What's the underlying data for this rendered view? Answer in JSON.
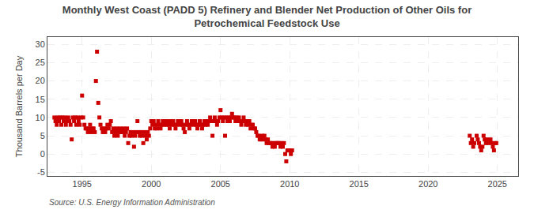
{
  "chart_data": {
    "type": "scatter",
    "title": "Monthly West Coast (PADD 5) Refinery and Blender Net Production of Other Oils for\nPetrochemical Feedstock Use",
    "ylabel": "Thousand Barrels per Day",
    "annotations": [
      "Source: U.S. Energy Information Administration"
    ],
    "color": "#cc0000",
    "marker": "square",
    "grid": true,
    "xlim": [
      1992.5,
      2026.5
    ],
    "ylim": [
      -6,
      32
    ],
    "xticks": [
      1995,
      2000,
      2005,
      2010,
      2015,
      2020,
      2025
    ],
    "yticks": [
      -5,
      0,
      5,
      10,
      15,
      20,
      25,
      30
    ],
    "x": [
      1993.0,
      1993.08,
      1993.17,
      1993.25,
      1993.33,
      1993.42,
      1993.5,
      1993.58,
      1993.67,
      1993.75,
      1993.83,
      1993.92,
      1994.0,
      1994.08,
      1994.17,
      1994.25,
      1994.33,
      1994.42,
      1994.5,
      1994.58,
      1994.67,
      1994.75,
      1994.83,
      1994.92,
      1995.0,
      1995.08,
      1995.17,
      1995.25,
      1995.33,
      1995.42,
      1995.5,
      1995.58,
      1995.67,
      1995.75,
      1995.83,
      1995.92,
      1996.0,
      1996.08,
      1996.17,
      1996.25,
      1996.33,
      1996.42,
      1996.5,
      1996.58,
      1996.67,
      1996.75,
      1996.83,
      1996.92,
      1997.0,
      1997.08,
      1997.17,
      1997.25,
      1997.33,
      1997.42,
      1997.5,
      1997.58,
      1997.67,
      1997.75,
      1997.83,
      1997.92,
      1998.0,
      1998.08,
      1998.17,
      1998.25,
      1998.33,
      1998.42,
      1998.5,
      1998.58,
      1998.67,
      1998.75,
      1998.83,
      1998.92,
      1999.0,
      1999.08,
      1999.17,
      1999.25,
      1999.33,
      1999.42,
      1999.5,
      1999.58,
      1999.67,
      1999.75,
      1999.83,
      1999.92,
      2000.0,
      2000.08,
      2000.17,
      2000.25,
      2000.33,
      2000.42,
      2000.5,
      2000.58,
      2000.67,
      2000.75,
      2000.83,
      2000.92,
      2001.0,
      2001.08,
      2001.17,
      2001.25,
      2001.33,
      2001.42,
      2001.5,
      2001.58,
      2001.67,
      2001.75,
      2001.83,
      2001.92,
      2002.0,
      2002.08,
      2002.17,
      2002.25,
      2002.33,
      2002.42,
      2002.5,
      2002.58,
      2002.67,
      2002.75,
      2002.83,
      2002.92,
      2003.0,
      2003.08,
      2003.17,
      2003.25,
      2003.33,
      2003.42,
      2003.5,
      2003.58,
      2003.67,
      2003.75,
      2003.83,
      2003.92,
      2004.0,
      2004.08,
      2004.17,
      2004.25,
      2004.33,
      2004.42,
      2004.5,
      2004.58,
      2004.67,
      2004.75,
      2004.83,
      2004.92,
      2005.0,
      2005.08,
      2005.17,
      2005.25,
      2005.33,
      2005.42,
      2005.5,
      2005.58,
      2005.67,
      2005.75,
      2005.83,
      2005.92,
      2006.0,
      2006.08,
      2006.17,
      2006.25,
      2006.33,
      2006.42,
      2006.5,
      2006.58,
      2006.67,
      2006.75,
      2006.83,
      2006.92,
      2007.0,
      2007.08,
      2007.17,
      2007.25,
      2007.33,
      2007.42,
      2007.5,
      2007.58,
      2007.67,
      2007.75,
      2007.83,
      2007.92,
      2008.0,
      2008.08,
      2008.17,
      2008.25,
      2008.33,
      2008.42,
      2008.5,
      2008.58,
      2008.67,
      2008.75,
      2008.83,
      2008.92,
      2009.0,
      2009.08,
      2009.17,
      2009.25,
      2009.33,
      2009.42,
      2009.5,
      2009.58,
      2009.67,
      2009.75,
      2009.83,
      2009.92,
      2010.0,
      2010.08,
      2010.17,
      2023.0,
      2023.08,
      2023.17,
      2023.25,
      2023.33,
      2023.5,
      2023.58,
      2023.67,
      2023.75,
      2023.83,
      2023.92,
      2024.0,
      2024.08,
      2024.17,
      2024.25,
      2024.33,
      2024.5,
      2024.58,
      2024.67,
      2024.75,
      2024.83,
      2024.92
    ],
    "values": [
      10,
      9,
      8,
      10,
      9,
      10,
      8,
      10,
      9,
      10,
      8,
      9,
      10,
      9,
      8,
      4,
      10,
      9,
      10,
      8,
      10,
      9,
      8,
      10,
      16,
      10,
      8,
      7,
      7,
      6,
      7,
      8,
      6,
      7,
      7,
      6,
      20,
      28,
      14,
      10,
      8,
      7,
      6,
      7,
      6,
      7,
      8,
      7,
      8,
      9,
      6,
      7,
      5,
      6,
      7,
      5,
      6,
      7,
      6,
      6,
      7,
      5,
      6,
      7,
      3,
      5,
      6,
      5,
      6,
      2,
      5,
      6,
      9,
      6,
      5,
      6,
      5,
      3,
      6,
      5,
      4,
      6,
      5,
      7,
      9,
      8,
      9,
      7,
      8,
      7,
      9,
      8,
      7,
      8,
      9,
      8,
      9,
      8,
      9,
      8,
      7,
      9,
      8,
      9,
      8,
      7,
      8,
      9,
      9,
      8,
      9,
      8,
      7,
      6,
      8,
      9,
      8,
      7,
      8,
      9,
      9,
      8,
      9,
      8,
      7,
      8,
      9,
      8,
      7,
      8,
      9,
      8,
      9,
      8,
      9,
      10,
      9,
      5,
      9,
      10,
      9,
      8,
      9,
      10,
      12,
      10,
      9,
      10,
      5,
      10,
      9,
      10,
      9,
      10,
      11,
      10,
      10,
      9,
      10,
      9,
      10,
      9,
      8,
      9,
      10,
      9,
      8,
      9,
      8,
      9,
      7,
      8,
      8,
      7,
      7,
      6,
      5,
      5,
      4,
      4,
      5,
      4,
      5,
      4,
      3,
      4,
      3,
      3,
      3,
      2,
      3,
      2,
      3,
      3,
      3,
      3,
      2,
      3,
      2,
      3,
      0,
      -2,
      1,
      1,
      1,
      0,
      1,
      5,
      3,
      4,
      2,
      3,
      5,
      4,
      3,
      2,
      1,
      2,
      5,
      4,
      3,
      4,
      3,
      4,
      3,
      2,
      1,
      3,
      3
    ]
  }
}
